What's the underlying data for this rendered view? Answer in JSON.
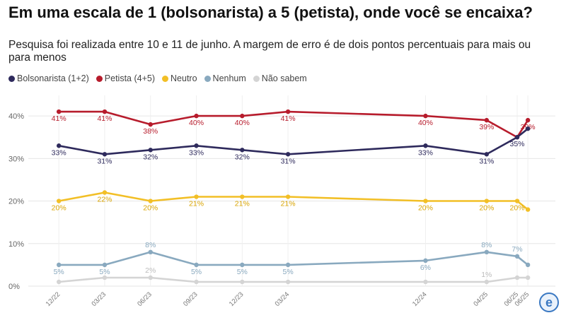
{
  "chart_data": {
    "type": "line",
    "title": "Em uma escala de 1 (bolsonarista) a 5 (petista), onde você se encaixa?",
    "subtitle": "Pesquisa foi realizada entre 10 e 11 de junho. A margem de erro é de dois pontos percentuais para mais ou para menos",
    "x_labels": [
      "12/22",
      "03/23",
      "06/23",
      "09/23",
      "12/23",
      "03/24",
      "12/24",
      "04/25",
      "06/25",
      "06/25"
    ],
    "x_positions": [
      0,
      3,
      6,
      9,
      12,
      15,
      24,
      28,
      30,
      30.7
    ],
    "y_ticks": [
      "0%",
      "10%",
      "20%",
      "30%",
      "40%"
    ],
    "ylim": [
      0,
      44
    ],
    "grid": true,
    "legend_position": "top-left",
    "series": [
      {
        "name": "Bolsonarista (1+2)",
        "color": "#2e2a5c",
        "values": [
          33,
          31,
          32,
          33,
          32,
          31,
          33,
          31,
          35,
          37
        ],
        "labels": [
          "33%",
          "31%",
          "32%",
          "33%",
          "32%",
          "31%",
          "33%",
          "31%",
          "35%",
          ""
        ]
      },
      {
        "name": "Petista (4+5)",
        "color": "#b71c2c",
        "values": [
          41,
          41,
          38,
          40,
          40,
          41,
          40,
          39,
          35,
          39
        ],
        "labels": [
          "41%",
          "41%",
          "38%",
          "40%",
          "40%",
          "41%",
          "40%",
          "39%",
          "",
          "39%"
        ]
      },
      {
        "name": "Neutro",
        "color": "#f2bf26",
        "values": [
          20,
          22,
          20,
          21,
          21,
          21,
          20,
          20,
          20,
          18
        ],
        "labels": [
          "20%",
          "22%",
          "20%",
          "21%",
          "21%",
          "21%",
          "20%",
          "20%",
          "20%",
          ""
        ]
      },
      {
        "name": "Nenhum",
        "color": "#89a9bf",
        "values": [
          5,
          5,
          8,
          5,
          5,
          5,
          6,
          8,
          7,
          5
        ],
        "labels": [
          "5%",
          "5%",
          "8%",
          "5%",
          "5%",
          "5%",
          "6%",
          "8%",
          "7%",
          ""
        ]
      },
      {
        "name": "Não sabem",
        "color": "#d4d4d4",
        "values": [
          1,
          2,
          2,
          1,
          1,
          1,
          1,
          1,
          2,
          2
        ],
        "labels": [
          "",
          "",
          "2%",
          "",
          "",
          "",
          "",
          "1%",
          "",
          ""
        ]
      }
    ]
  },
  "badge": {
    "letter": "e",
    "icon": "estadao-logo-icon"
  }
}
